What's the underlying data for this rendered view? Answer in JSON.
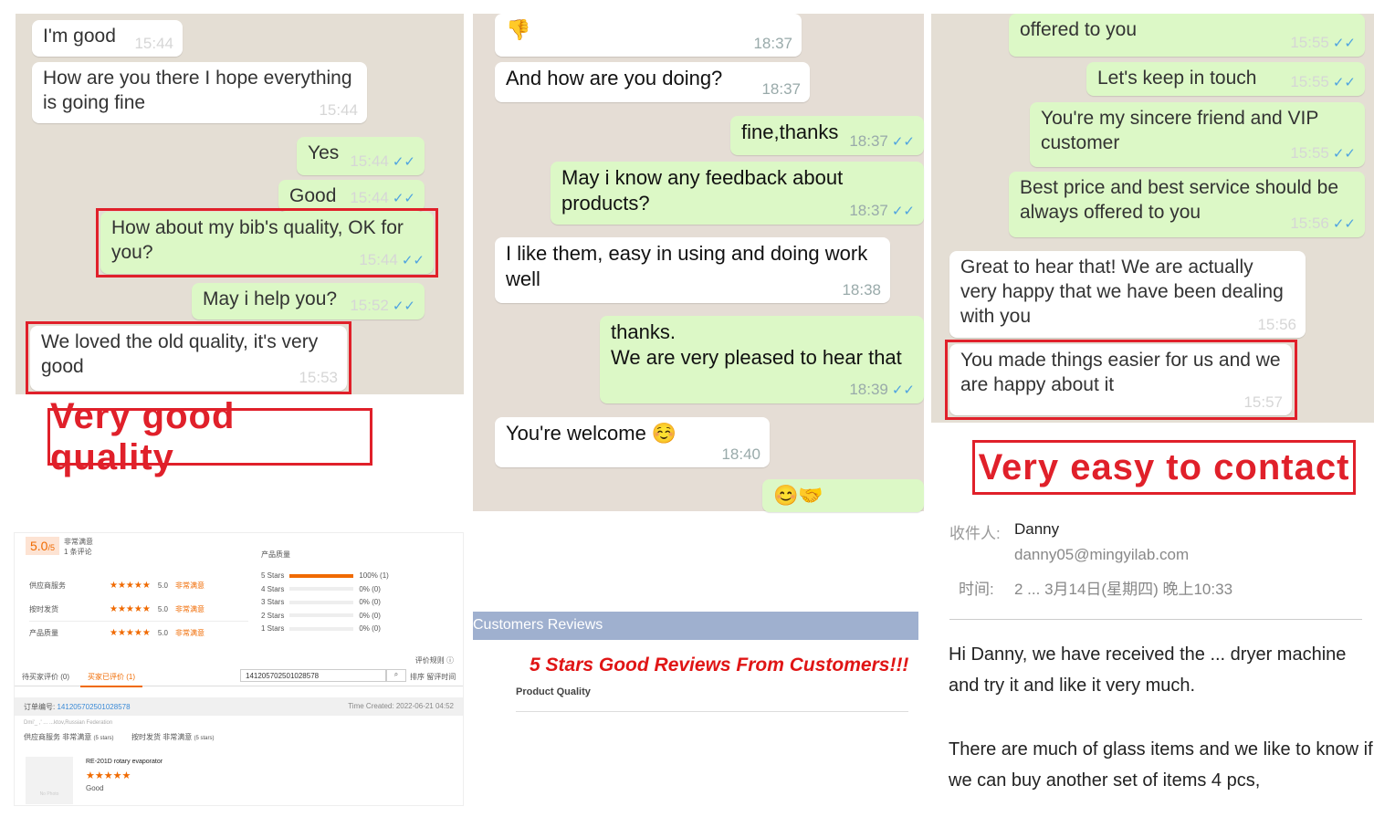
{
  "panel1": {
    "bubbles": [
      {
        "text": "I'm good",
        "time": "15:44",
        "dir": "in"
      },
      {
        "text": "How are you there I hope everything is going fine",
        "time": "15:44",
        "dir": "in"
      },
      {
        "text": "Yes",
        "time": "15:44",
        "dir": "out"
      },
      {
        "text": "Good",
        "time": "15:44",
        "dir": "out"
      },
      {
        "text": "How about my bib's quality, OK for you?",
        "time": "15:44",
        "dir": "out"
      },
      {
        "text": "May i help you?",
        "time": "15:52",
        "dir": "out"
      },
      {
        "text": "We loved the old quality, it's very good",
        "time": "15:53",
        "dir": "in"
      }
    ],
    "caption": "Very good quality"
  },
  "panel2": {
    "bubbles": [
      {
        "text": "👎",
        "time": "18:37",
        "dir": "in"
      },
      {
        "text": "And how are you doing?",
        "time": "18:37",
        "dir": "in"
      },
      {
        "text": "fine,thanks",
        "time": "18:37",
        "dir": "out"
      },
      {
        "text": "May i know any feedback about products?",
        "time": "18:37",
        "dir": "out"
      },
      {
        "text": "I like them, easy in using and doing work well",
        "time": "18:38",
        "dir": "in"
      },
      {
        "text": "thanks.\nWe are very pleased to hear that",
        "time": "18:39",
        "dir": "out"
      },
      {
        "text": "You're welcome ☺️",
        "time": "18:40",
        "dir": "in"
      },
      {
        "text": "😊🤝",
        "time": "",
        "dir": "out"
      }
    ]
  },
  "panel3": {
    "bubbles": [
      {
        "text": "offered to you",
        "time": "15:55",
        "dir": "out"
      },
      {
        "text": "Let's keep in touch",
        "time": "15:55",
        "dir": "out"
      },
      {
        "text": "You're my sincere friend and VIP customer",
        "time": "15:55",
        "dir": "out"
      },
      {
        "text": "Best price and best service should be always offered to you",
        "time": "15:56",
        "dir": "out"
      },
      {
        "text": "Great to hear that! We are actually very happy that we have been dealing with you",
        "time": "15:56",
        "dir": "in"
      },
      {
        "text": "You made things easier for us and we are happy about it",
        "time": "15:57",
        "dir": "in"
      }
    ],
    "caption": "Very easy to contact"
  },
  "review_panel": {
    "score": "5.0",
    "score_suffix": "/5",
    "rating_text": "非常满意",
    "review_count": "1 条评论",
    "criteria": [
      {
        "label": "供应商服务",
        "score": "5.0",
        "text": "非常满意"
      },
      {
        "label": "按时发货",
        "score": "5.0",
        "text": "非常满意"
      },
      {
        "label": "产品质量",
        "score": "5.0",
        "text": "非常满意"
      }
    ],
    "dist_title": "产品质量",
    "distribution": [
      {
        "label": "5 Stars",
        "pct": 100,
        "pct_text": "100%",
        "count": "(1)"
      },
      {
        "label": "4 Stars",
        "pct": 0,
        "pct_text": "0%",
        "count": "(0)"
      },
      {
        "label": "3 Stars",
        "pct": 0,
        "pct_text": "0%",
        "count": "(0)"
      },
      {
        "label": "2 Stars",
        "pct": 0,
        "pct_text": "0%",
        "count": "(0)"
      },
      {
        "label": "1 Stars",
        "pct": 0,
        "pct_text": "0%",
        "count": "(0)"
      }
    ],
    "rules_link": "评价规则 ⓘ",
    "tabs": [
      "待买家评价 (0)",
      "买家已评价 (1)"
    ],
    "search_value": "141205702501028578",
    "sort_label": "排序 留评时间",
    "order_label": "订单编号:",
    "order_number": "141205702501028578",
    "time_created": "Time Created: 2022-06-21 04:52",
    "buyer": "Dmi'_ ,' ... ...ktov,Russian Federation",
    "supplier_service": "供应商服务 非常满意",
    "supplier_stars": "(5 stars)",
    "shipping": "按时发货 非常满意",
    "shipping_stars": "(5 stars)",
    "no_photo": "No Photo",
    "product_name": "RE-201D rotary evaporator",
    "stars": "★★★★★",
    "comment": "Good"
  },
  "reviews_banner": {
    "header": "Customers Reviews",
    "headline": "5 Stars Good Reviews From Customers!!!",
    "subheading": "Product Quality"
  },
  "email": {
    "to_label": "收件人:",
    "to_name": "Danny",
    "to_email": "danny05@mingyilab.com",
    "time_label": "时间:",
    "time_value": "2 ... 3月14日(星期四) 晚上10:33",
    "para1": "Hi Danny, we have received the ... dryer machine and try it and like it very much.",
    "para2": "There are much of glass items and we like to know if we can buy another set of items 4 pcs,"
  },
  "colors": {
    "accent_red": "#e0202a",
    "whatsapp_out": "#dcf8c6",
    "orange": "#f06a00",
    "banner": "#9fb0cf"
  }
}
